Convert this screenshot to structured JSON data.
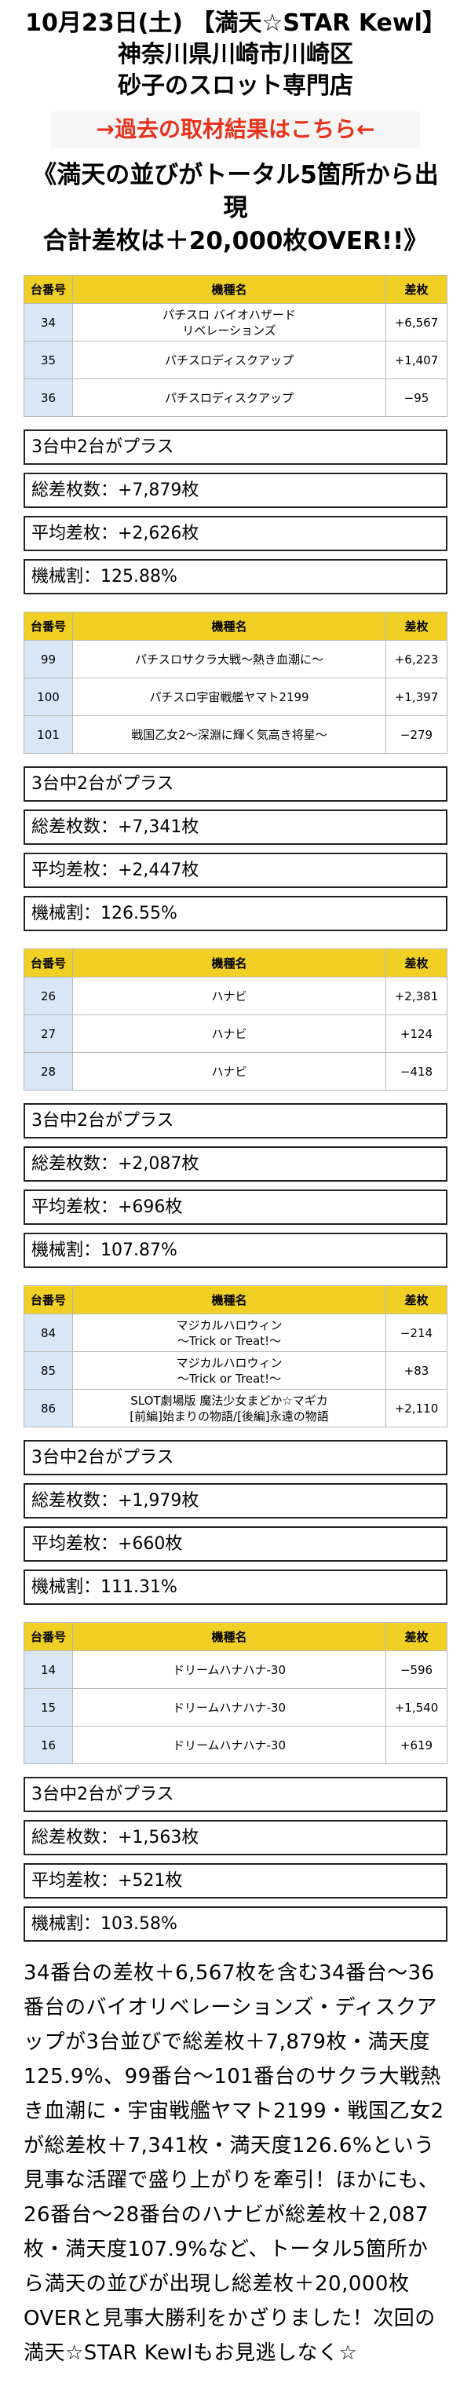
{
  "header": {
    "date_title": "10月23日(土) 【満天☆STAR Kewl】",
    "location": "神奈川県川崎市川崎区",
    "store": "砂子のスロット専門店",
    "archive_link": "→過去の取材結果はこちら←",
    "headline_1": "《満天の並びがトータル5箇所から出現",
    "headline_2": "合計差枚は＋20,000枚OVER!!》",
    "link_color": "#e8321c"
  },
  "columns": [
    "台番号",
    "機種名",
    "差枚"
  ],
  "groups": [
    {
      "rows": [
        {
          "num": "34",
          "name": [
            "パチスロ バイオハザード",
            "リベレーションズ"
          ],
          "diff": "+6,567"
        },
        {
          "num": "35",
          "name": [
            "パチスロディスクアップ"
          ],
          "diff": "+1,407"
        },
        {
          "num": "36",
          "name": [
            "パチスロディスクアップ"
          ],
          "diff": "−95"
        }
      ],
      "stats": [
        "3台中2台がプラス",
        "総差枚数：+7,879枚",
        "平均差枚：+2,626枚",
        "機械割：125.88%"
      ]
    },
    {
      "rows": [
        {
          "num": "99",
          "name": [
            "パチスロサクラ大戦～熱き血潮に～"
          ],
          "diff": "+6,223"
        },
        {
          "num": "100",
          "name": [
            "パチスロ宇宙戦艦ヤマト2199"
          ],
          "diff": "+1,397"
        },
        {
          "num": "101",
          "name": [
            "戦国乙女2～深淵に輝く気高き将星～"
          ],
          "diff": "−279"
        }
      ],
      "stats": [
        "3台中2台がプラス",
        "総差枚数：+7,341枚",
        "平均差枚：+2,447枚",
        "機械割：126.55%"
      ]
    },
    {
      "rows": [
        {
          "num": "26",
          "name": [
            "ハナビ"
          ],
          "diff": "+2,381"
        },
        {
          "num": "27",
          "name": [
            "ハナビ"
          ],
          "diff": "+124"
        },
        {
          "num": "28",
          "name": [
            "ハナビ"
          ],
          "diff": "−418"
        }
      ],
      "stats": [
        "3台中2台がプラス",
        "総差枚数：+2,087枚",
        "平均差枚：+696枚",
        "機械割：107.87%"
      ]
    },
    {
      "rows": [
        {
          "num": "84",
          "name": [
            "マジカルハロウィン",
            "～Trick or Treat!～"
          ],
          "diff": "−214"
        },
        {
          "num": "85",
          "name": [
            "マジカルハロウィン",
            "～Trick or Treat!～"
          ],
          "diff": "+83"
        },
        {
          "num": "86",
          "name": [
            "SLOT劇場版 魔法少女まどか☆マギカ",
            "[前編]始まりの物語/[後編]永遠の物語"
          ],
          "diff": "+2,110"
        }
      ],
      "stats": [
        "3台中2台がプラス",
        "総差枚数：+1,979枚",
        "平均差枚：+660枚",
        "機械割：111.31%"
      ]
    },
    {
      "rows": [
        {
          "num": "14",
          "name": [
            "ドリームハナハナ-30"
          ],
          "diff": "−596"
        },
        {
          "num": "15",
          "name": [
            "ドリームハナハナ-30"
          ],
          "diff": "+1,540"
        },
        {
          "num": "16",
          "name": [
            "ドリームハナハナ-30"
          ],
          "diff": "+619"
        }
      ],
      "stats": [
        "3台中2台がプラス",
        "総差枚数：+1,563枚",
        "平均差枚：+521枚",
        "機械割：103.58%"
      ]
    }
  ],
  "summary": "34番台の差枚＋6,567枚を含む34番台～36番台のバイオリベレーションズ・ディスクアップが3台並びで総差枚＋7,879枚・満天度125.9%、99番台～101番台のサクラ大戦熱き血潮に・宇宙戦艦ヤマト2199・戦国乙女2が総差枚＋7,341枚・満天度126.6%という見事な活躍で盛り上がりを牽引！ほかにも、26番台～28番台のハナビが総差枚＋2,087枚・満天度107.9%など、トータル5箇所から満天の並びが出現し総差枚＋20,000枚OVERと見事大勝利をかざりました！次回の満天☆STAR Kewlもお見逃しなく☆",
  "colors": {
    "header_bg": "#f0d024",
    "num_bg": "#d8e6f6"
  }
}
